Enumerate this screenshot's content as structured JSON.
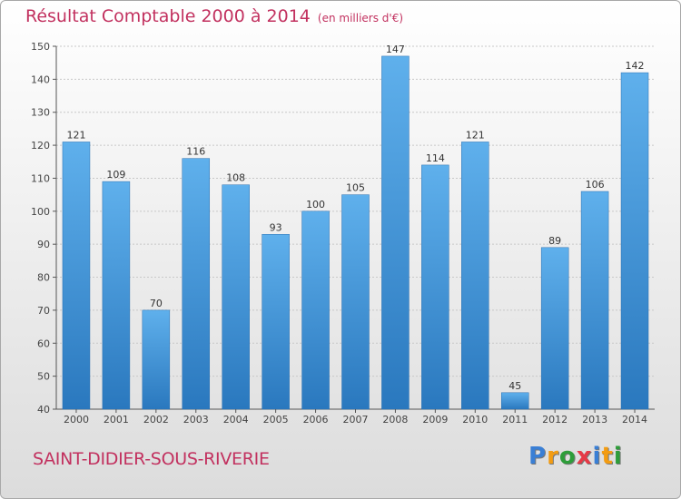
{
  "chart_data": {
    "type": "bar",
    "title": "Résultat Comptable 2000 à 2014",
    "subtitle": "(en milliers d'€)",
    "categories": [
      "2000",
      "2001",
      "2002",
      "2003",
      "2004",
      "2005",
      "2006",
      "2007",
      "2008",
      "2009",
      "2010",
      "2011",
      "2012",
      "2013",
      "2014"
    ],
    "values": [
      121,
      109,
      70,
      116,
      108,
      93,
      100,
      105,
      147,
      114,
      121,
      45,
      89,
      106,
      142
    ],
    "ylim": [
      40,
      150
    ],
    "yticks": [
      40,
      50,
      60,
      70,
      80,
      90,
      100,
      110,
      120,
      130,
      140,
      150
    ],
    "xlabel": "",
    "ylabel": "",
    "grid": true,
    "bar_color": "#3d8fd4"
  },
  "commune": "SAINT-DIDIER-SOUS-RIVERIE",
  "logo": {
    "letters": [
      "P",
      "r",
      "o",
      "x",
      "i",
      "t",
      "i"
    ],
    "colors": [
      "#3a7fd5",
      "#f39c12",
      "#2e9d3a",
      "#e63946",
      "#3a7fd5",
      "#f39c12",
      "#2e9d3a"
    ]
  }
}
